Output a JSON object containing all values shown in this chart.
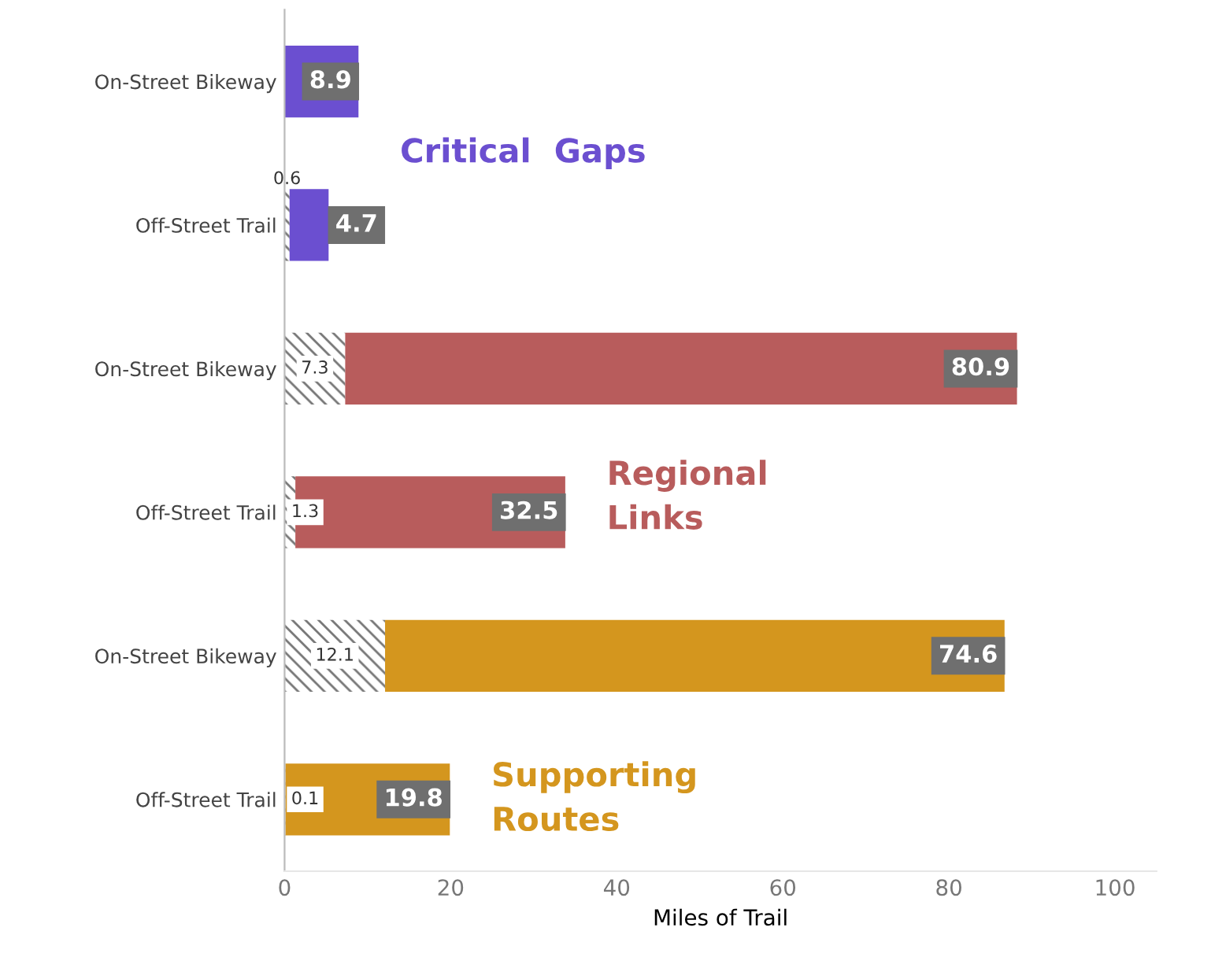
{
  "chart_data": {
    "type": "bar",
    "orientation": "horizontal",
    "stacked": true,
    "categories": [
      "On-Street Bikeway",
      "Off-Street Trail",
      "On-Street Bikeway",
      "Off-Street Trail",
      "On-Street Bikeway",
      "Off-Street Trail"
    ],
    "series": [
      {
        "colors": [
          "#6b4fd0",
          "#6b4fd0",
          "#b85c5c",
          "#b85c5c",
          "#d4961e",
          "#d4961e"
        ],
        "values": [
          0,
          0.6,
          7.3,
          1.3,
          12.1,
          0.1
        ],
        "value_labels": [
          null,
          "0.6",
          "7.3",
          "1.3",
          "12.1",
          "0.1"
        ]
      },
      {
        "colors": [
          "#6b4fd0",
          "#6b4fd0",
          "#b85c5c",
          "#b85c5c",
          "#d4961e",
          "#d4961e"
        ],
        "values": [
          8.9,
          4.7,
          80.9,
          32.5,
          74.6,
          19.8
        ],
        "value_labels": [
          "8.9",
          "4.7",
          "80.9",
          "32.5",
          "74.6",
          "19.8"
        ]
      }
    ],
    "xlabel": "Miles of Trail",
    "xlim": [
      0,
      105
    ],
    "xticks": [
      0,
      20,
      40,
      60,
      80,
      100
    ],
    "annotations": [
      "Critical  Gaps",
      "Regional\nLinks",
      "Supporting\nRoutes"
    ],
    "grid": false,
    "legend": false
  }
}
